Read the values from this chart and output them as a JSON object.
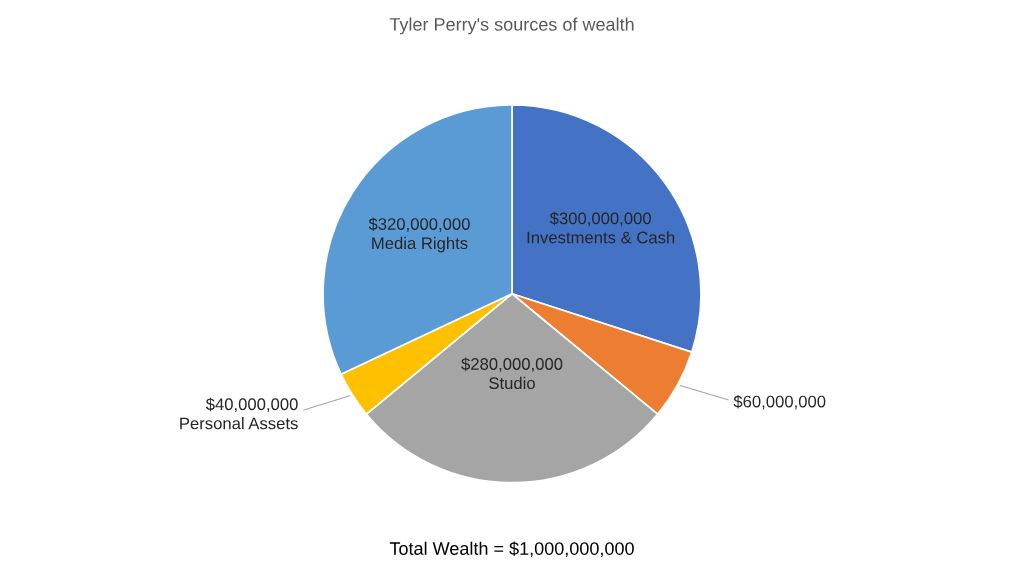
{
  "chart_data": {
    "type": "pie",
    "title": "Tyler Perry's sources of wealth",
    "categories": [
      "Investments & Cash",
      null,
      "Studio",
      "Personal Assets",
      "Media Rights"
    ],
    "values": [
      300000000,
      60000000,
      280000000,
      40000000,
      320000000
    ],
    "value_labels": [
      "$300,000,000",
      "$60,000,000",
      "$280,000,000",
      "$40,000,000",
      "$320,000,000"
    ],
    "colors": [
      "#4472c4",
      "#ed7d31",
      "#a5a5a5",
      "#ffc000",
      "#5b9bd5"
    ],
    "annotations": [
      "Total Wealth = $1,000,000,000"
    ]
  }
}
